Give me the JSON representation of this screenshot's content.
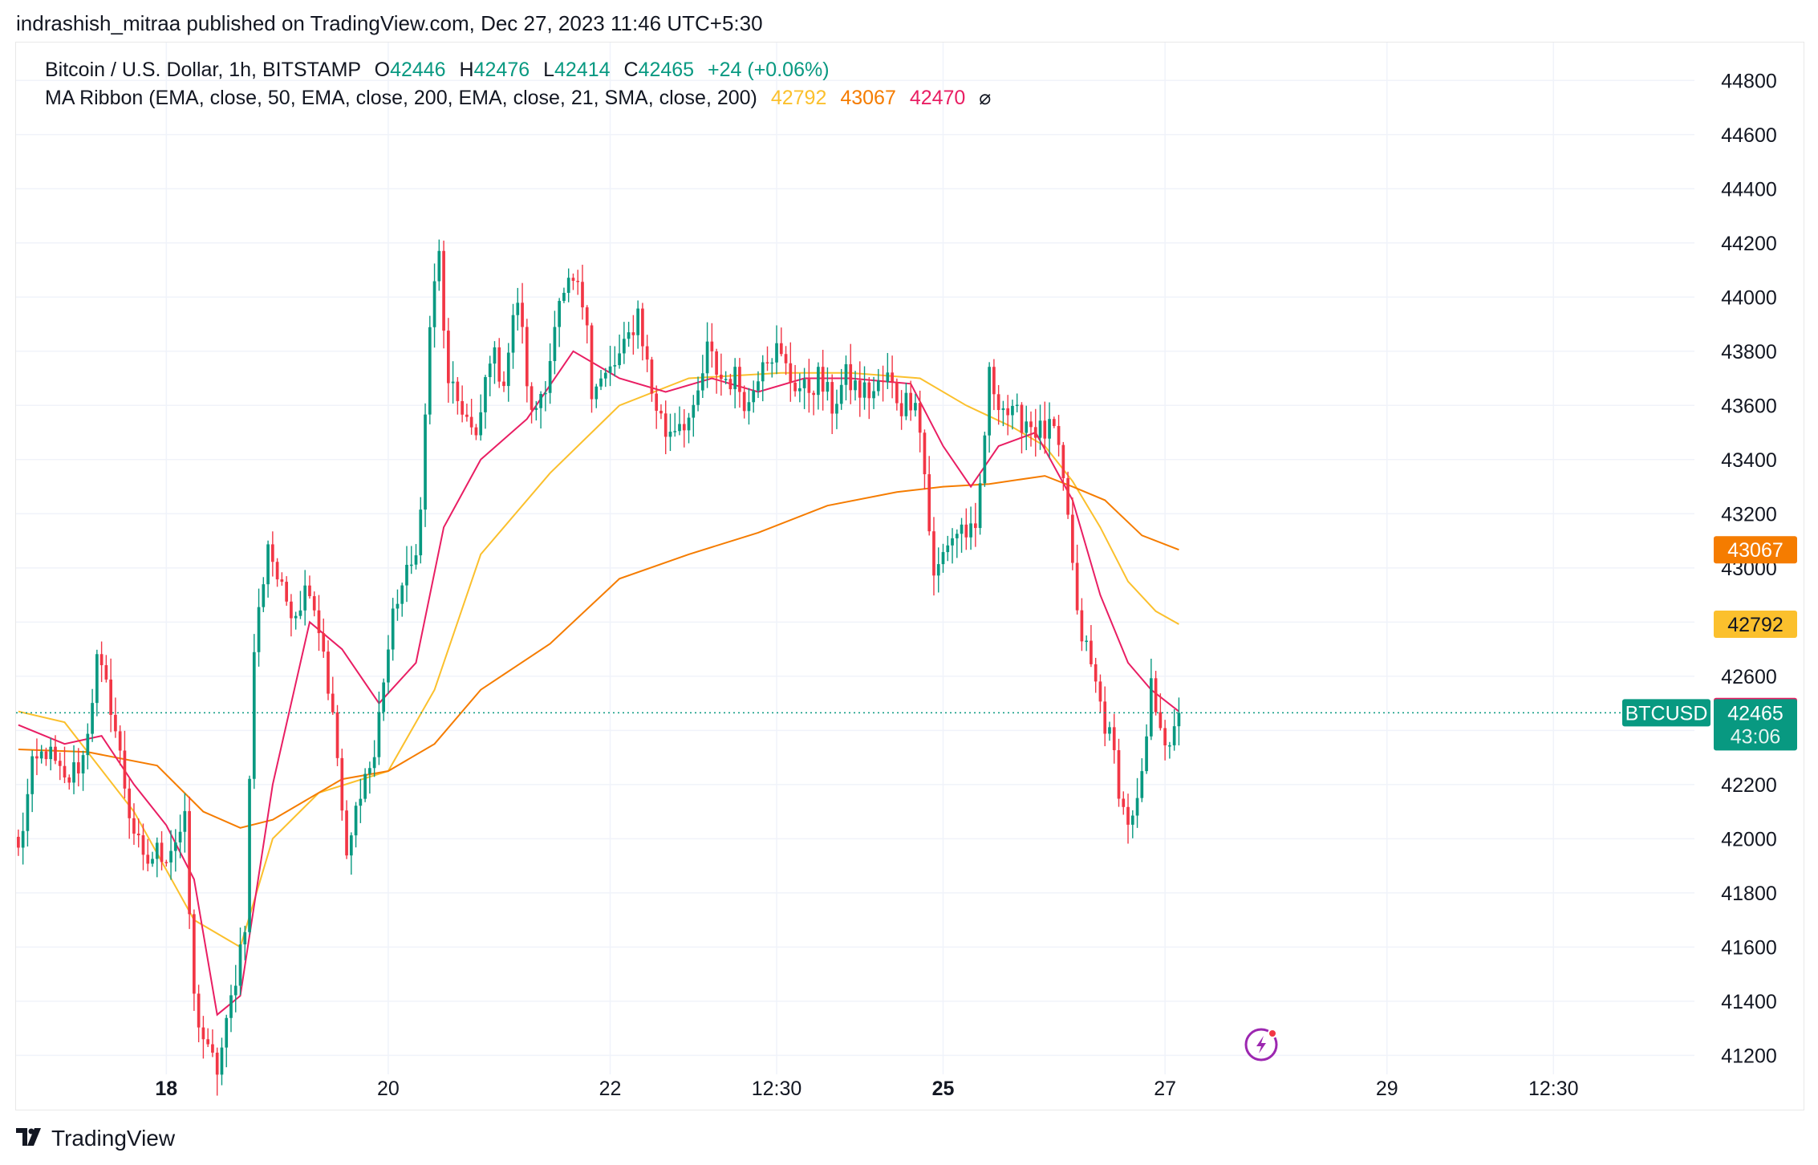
{
  "header": {
    "publish_line": "indrashish_mitraa published on TradingView.com, Dec 27, 2023 11:46 UTC+5:30"
  },
  "legend": {
    "symbol": "Bitcoin / U.S. Dollar, 1h, BITSTAMP",
    "o_label": "O",
    "o_value": "42446",
    "h_label": "H",
    "h_value": "42476",
    "l_label": "L",
    "l_value": "42414",
    "c_label": "C",
    "c_value": "42465",
    "change": "+24 (+0.06%)",
    "ma_label": "MA Ribbon (EMA, close, 50, EMA, close, 200, EMA, close, 21, SMA, close, 200)",
    "ma_values": [
      "42792",
      "43067",
      "42470"
    ],
    "ma_hidden_icon": "⌀"
  },
  "footer": {
    "brand": "TradingView",
    "logo_icon": "tradingview-logo-icon"
  },
  "price_tags": {
    "symbol_tag": "BTCUSD",
    "last_price": "42465",
    "countdown": "43:06",
    "ma_tags": [
      {
        "value": "43067",
        "color": "#f57c00"
      },
      {
        "value": "42792",
        "color": "#fbc02d"
      },
      {
        "value": "42470",
        "color": "#e91e63"
      }
    ]
  },
  "colors": {
    "up": "#089981",
    "down": "#f23645",
    "ema50": "#fbc02d",
    "ema200": "#f57c00",
    "ema21": "#e91e63",
    "grid": "#f0f3fa",
    "lightning": "#9c27b0"
  },
  "chart_data": {
    "type": "candlestick",
    "title": "Bitcoin / U.S. Dollar, 1h, BITSTAMP",
    "ylim": [
      41130,
      44940
    ],
    "y_ticks": [
      41200,
      41400,
      41600,
      41800,
      42000,
      42200,
      42400,
      42600,
      42800,
      43000,
      43200,
      43400,
      43600,
      43800,
      44000,
      44200,
      44400,
      44600,
      44800
    ],
    "x_ticks": [
      {
        "label": "18",
        "bar": 32,
        "bold": true
      },
      {
        "label": "20",
        "bar": 80,
        "bold": false
      },
      {
        "label": "22",
        "bar": 128,
        "bold": false
      },
      {
        "label": "12:30",
        "bar": 164,
        "bold": false
      },
      {
        "label": "25",
        "bar": 200,
        "bold": true
      },
      {
        "label": "27",
        "bar": 248,
        "bold": false
      },
      {
        "label": "29",
        "bar": 296,
        "bold": false
      },
      {
        "label": "12:30",
        "bar": 332,
        "bold": false
      }
    ],
    "bar_count_visible": 363,
    "close_anchors": [
      [
        0,
        41950
      ],
      [
        3,
        42250
      ],
      [
        6,
        42330
      ],
      [
        10,
        42200
      ],
      [
        14,
        42300
      ],
      [
        17,
        42650
      ],
      [
        20,
        42500
      ],
      [
        24,
        42100
      ],
      [
        27,
        41900
      ],
      [
        30,
        41950
      ],
      [
        32,
        41950
      ],
      [
        36,
        42050
      ],
      [
        38,
        41400
      ],
      [
        41,
        41200
      ],
      [
        43,
        41150
      ],
      [
        45,
        41300
      ],
      [
        47,
        41500
      ],
      [
        49,
        41700
      ],
      [
        51,
        42700
      ],
      [
        54,
        43100
      ],
      [
        57,
        42900
      ],
      [
        60,
        42850
      ],
      [
        63,
        42950
      ],
      [
        66,
        42700
      ],
      [
        69,
        42300
      ],
      [
        71,
        41900
      ],
      [
        74,
        42200
      ],
      [
        77,
        42300
      ],
      [
        79,
        42600
      ],
      [
        82,
        42900
      ],
      [
        85,
        43000
      ],
      [
        87,
        43200
      ],
      [
        89,
        43900
      ],
      [
        91,
        44150
      ],
      [
        93,
        43650
      ],
      [
        96,
        43600
      ],
      [
        99,
        43450
      ],
      [
        102,
        43800
      ],
      [
        105,
        43700
      ],
      [
        108,
        44000
      ],
      [
        111,
        43550
      ],
      [
        114,
        43700
      ],
      [
        117,
        43950
      ],
      [
        120,
        44050
      ],
      [
        123,
        43950
      ],
      [
        124,
        43650
      ],
      [
        127,
        43700
      ],
      [
        131,
        43800
      ],
      [
        134,
        43950
      ],
      [
        137,
        43650
      ],
      [
        140,
        43500
      ],
      [
        143,
        43550
      ],
      [
        146,
        43550
      ],
      [
        149,
        43800
      ],
      [
        152,
        43700
      ],
      [
        155,
        43700
      ],
      [
        158,
        43600
      ],
      [
        161,
        43800
      ],
      [
        164,
        43800
      ],
      [
        167,
        43700
      ],
      [
        170,
        43650
      ],
      [
        173,
        43700
      ],
      [
        176,
        43600
      ],
      [
        179,
        43700
      ],
      [
        182,
        43650
      ],
      [
        185,
        43650
      ],
      [
        188,
        43700
      ],
      [
        191,
        43600
      ],
      [
        194,
        43650
      ],
      [
        196,
        43350
      ],
      [
        198,
        42950
      ],
      [
        201,
        43100
      ],
      [
        204,
        43150
      ],
      [
        207,
        43100
      ],
      [
        210,
        43700
      ],
      [
        213,
        43600
      ],
      [
        215,
        43550
      ],
      [
        218,
        43550
      ],
      [
        221,
        43500
      ],
      [
        224,
        43500
      ],
      [
        227,
        43200
      ],
      [
        229,
        42800
      ],
      [
        231,
        42700
      ],
      [
        234,
        42500
      ],
      [
        237,
        42300
      ],
      [
        239,
        42100
      ],
      [
        241,
        42050
      ],
      [
        243,
        42200
      ],
      [
        245,
        42550
      ],
      [
        247,
        42450
      ],
      [
        249,
        42300
      ],
      [
        251,
        42465
      ]
    ],
    "series": [
      {
        "name": "EMA, close, 50",
        "color": "#fbc02d",
        "last": 42792,
        "points": [
          [
            0,
            42470
          ],
          [
            10,
            42430
          ],
          [
            25,
            42100
          ],
          [
            38,
            41700
          ],
          [
            48,
            41600
          ],
          [
            55,
            42000
          ],
          [
            65,
            42170
          ],
          [
            80,
            42250
          ],
          [
            90,
            42550
          ],
          [
            100,
            43050
          ],
          [
            115,
            43350
          ],
          [
            130,
            43600
          ],
          [
            145,
            43700
          ],
          [
            165,
            43720
          ],
          [
            180,
            43720
          ],
          [
            195,
            43700
          ],
          [
            205,
            43600
          ],
          [
            215,
            43520
          ],
          [
            222,
            43450
          ],
          [
            228,
            43320
          ],
          [
            234,
            43150
          ],
          [
            240,
            42950
          ],
          [
            246,
            42840
          ],
          [
            251,
            42792
          ]
        ]
      },
      {
        "name": "EMA, close, 200",
        "color": "#f57c00",
        "last": 43067,
        "points": [
          [
            0,
            42330
          ],
          [
            15,
            42320
          ],
          [
            30,
            42270
          ],
          [
            40,
            42100
          ],
          [
            48,
            42040
          ],
          [
            55,
            42070
          ],
          [
            70,
            42220
          ],
          [
            80,
            42250
          ],
          [
            90,
            42350
          ],
          [
            100,
            42550
          ],
          [
            115,
            42720
          ],
          [
            130,
            42960
          ],
          [
            145,
            43050
          ],
          [
            160,
            43130
          ],
          [
            175,
            43230
          ],
          [
            190,
            43280
          ],
          [
            200,
            43300
          ],
          [
            210,
            43310
          ],
          [
            222,
            43340
          ],
          [
            228,
            43300
          ],
          [
            235,
            43250
          ],
          [
            243,
            43120
          ],
          [
            251,
            43067
          ]
        ]
      },
      {
        "name": "EMA, close, 21",
        "color": "#e91e63",
        "last": 42470,
        "points": [
          [
            0,
            42420
          ],
          [
            10,
            42350
          ],
          [
            18,
            42380
          ],
          [
            25,
            42200
          ],
          [
            32,
            42050
          ],
          [
            38,
            41850
          ],
          [
            43,
            41350
          ],
          [
            48,
            41420
          ],
          [
            55,
            42200
          ],
          [
            63,
            42800
          ],
          [
            70,
            42700
          ],
          [
            78,
            42500
          ],
          [
            86,
            42650
          ],
          [
            92,
            43150
          ],
          [
            100,
            43400
          ],
          [
            110,
            43550
          ],
          [
            120,
            43800
          ],
          [
            130,
            43700
          ],
          [
            140,
            43650
          ],
          [
            150,
            43700
          ],
          [
            160,
            43650
          ],
          [
            170,
            43700
          ],
          [
            180,
            43700
          ],
          [
            193,
            43680
          ],
          [
            200,
            43450
          ],
          [
            206,
            43300
          ],
          [
            212,
            43450
          ],
          [
            220,
            43500
          ],
          [
            228,
            43250
          ],
          [
            234,
            42900
          ],
          [
            240,
            42650
          ],
          [
            245,
            42550
          ],
          [
            251,
            42470
          ]
        ]
      }
    ]
  }
}
